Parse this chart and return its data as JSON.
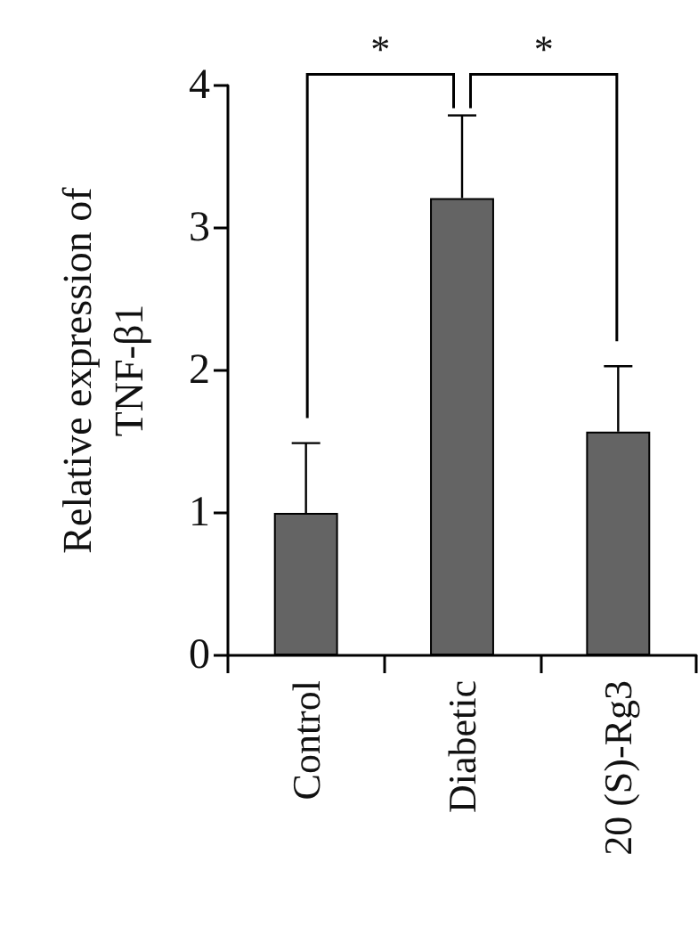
{
  "chart_data": {
    "type": "bar",
    "ylabel": "Relative expression of TNF-β1",
    "categories": [
      "Control",
      "Diabetic",
      "20 (S)-Rg3"
    ],
    "values": [
      1.0,
      3.21,
      1.57
    ],
    "errors": [
      0.49,
      0.58,
      0.46
    ],
    "color": "#646464",
    "ylim": [
      0,
      4
    ],
    "yticks": [
      0,
      1,
      2,
      3,
      4
    ],
    "grid": false,
    "annotations": [
      "*",
      "*"
    ]
  }
}
